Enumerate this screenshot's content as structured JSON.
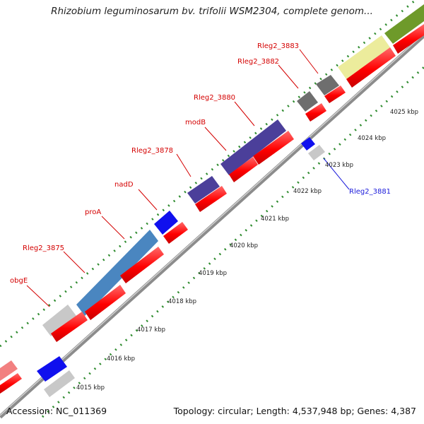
{
  "title": "Rhizobium leguminosarum bv. trifolii WSM2304, complete genom...",
  "footer": {
    "accession": "Accession: NC_011369",
    "summary": "Topology: circular; Length: 4,537,948 bp; Genes: 4,387"
  },
  "scale": {
    "ticks": [
      {
        "label": "4015 kbp"
      },
      {
        "label": "4016 kbp"
      },
      {
        "label": "4017 kbp"
      },
      {
        "label": "4018 kbp"
      },
      {
        "label": "4019 kbp"
      },
      {
        "label": "4020 kbp"
      },
      {
        "label": "4021 kbp"
      },
      {
        "label": "4022 kbp"
      },
      {
        "label": "4023 kbp"
      },
      {
        "label": "4024 kbp"
      },
      {
        "label": "4025 kbp"
      }
    ]
  },
  "gene_labels": [
    {
      "id": "obgE",
      "text": "obgE",
      "color": "#d40000"
    },
    {
      "id": "rleg2-3875",
      "text": "Rleg2_3875",
      "color": "#d40000"
    },
    {
      "id": "proa",
      "text": "proA",
      "color": "#d40000"
    },
    {
      "id": "nadd",
      "text": "nadD",
      "color": "#d40000"
    },
    {
      "id": "rleg2-3878",
      "text": "Rleg2_3878",
      "color": "#d40000"
    },
    {
      "id": "modb",
      "text": "modB",
      "color": "#d40000"
    },
    {
      "id": "rleg2-3880",
      "text": "Rleg2_3880",
      "color": "#d40000"
    },
    {
      "id": "rleg2-3882",
      "text": "Rleg2_3882",
      "color": "#d40000"
    },
    {
      "id": "rleg2-3883",
      "text": "Rleg2_3883",
      "color": "#d40000"
    },
    {
      "id": "rleg2-3881",
      "text": "Rleg2_3881",
      "color": "#1a1adb"
    }
  ],
  "colors": {
    "backbone": "#8c8c8c",
    "tick_dots": "#2e8b2e",
    "cds_red": "#ff0000",
    "gene_blue": "#1010ee",
    "gene_steelblue": "#4a86c0",
    "gene_purple": "#4b3f9a",
    "gene_gray": "#c8c8c8",
    "gene_darkgray": "#6e6e6e",
    "gene_yellow": "#ecec9c",
    "gene_olive": "#6e9a2a",
    "gene_pink": "#f28080"
  }
}
